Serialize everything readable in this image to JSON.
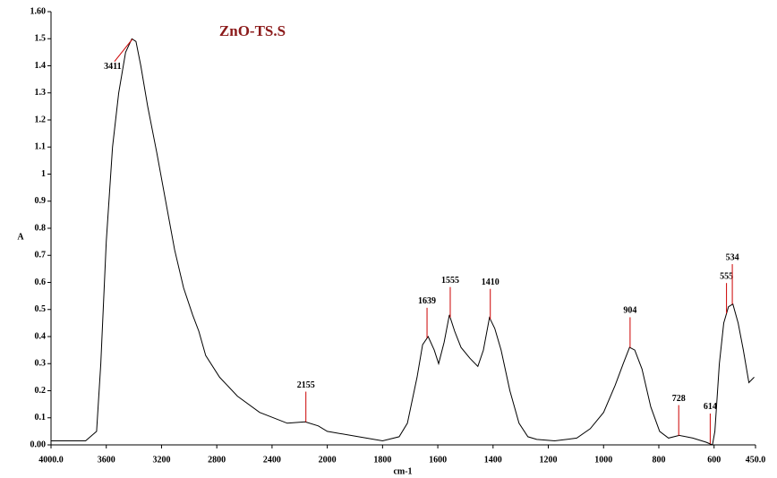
{
  "chart_data": {
    "type": "line",
    "title": "ZnO-TS.S",
    "x_label": "cm-1",
    "y_label": "A",
    "xlim": [
      4000,
      450
    ],
    "x_scale": {
      "break": 2000,
      "factor": 2
    },
    "ylim": [
      0,
      1.6
    ],
    "xticks": [
      {
        "value": 4000,
        "label": "4000.0"
      },
      3600,
      3200,
      2800,
      2400,
      2000,
      1800,
      1600,
      1400,
      1200,
      1000,
      800,
      600,
      {
        "value": 450,
        "label": "450.0"
      }
    ],
    "yticks": [
      {
        "value": 0,
        "label": "0.00"
      },
      0.1,
      0.2,
      0.3,
      0.4,
      0.5,
      0.6,
      0.7,
      0.8,
      0.9,
      1.0,
      1.1,
      1.2,
      1.3,
      1.4,
      1.5,
      {
        "value": 1.6,
        "label": "1.60"
      }
    ],
    "color": "#000000",
    "peak_color": "#cc0000",
    "x": [
      4000,
      3750,
      3670,
      3640,
      3600,
      3555,
      3510,
      3460,
      3415,
      3385,
      3350,
      3300,
      3235,
      3170,
      3105,
      3040,
      2975,
      2930,
      2880,
      2780,
      2650,
      2490,
      2290,
      2160,
      2065,
      2000,
      1887,
      1800,
      1740,
      1710,
      1675,
      1655,
      1635,
      1613,
      1597,
      1577,
      1558,
      1539,
      1516,
      1484,
      1455,
      1435,
      1413,
      1394,
      1371,
      1339,
      1306,
      1274,
      1242,
      1177,
      1097,
      1048,
      1000,
      958,
      929,
      906,
      887,
      861,
      829,
      797,
      765,
      726,
      677,
      629,
      606,
      597,
      581,
      565,
      548,
      532,
      513,
      494,
      474,
      455
    ],
    "values": [
      0.015,
      0.015,
      0.05,
      0.3,
      0.75,
      1.1,
      1.3,
      1.45,
      1.5,
      1.49,
      1.4,
      1.25,
      1.08,
      0.9,
      0.72,
      0.58,
      0.48,
      0.42,
      0.33,
      0.25,
      0.18,
      0.12,
      0.08,
      0.085,
      0.07,
      0.05,
      0.03,
      0.015,
      0.03,
      0.08,
      0.25,
      0.37,
      0.4,
      0.35,
      0.3,
      0.38,
      0.48,
      0.42,
      0.36,
      0.32,
      0.29,
      0.35,
      0.47,
      0.43,
      0.35,
      0.2,
      0.08,
      0.03,
      0.02,
      0.015,
      0.025,
      0.06,
      0.12,
      0.22,
      0.3,
      0.36,
      0.35,
      0.28,
      0.14,
      0.05,
      0.025,
      0.035,
      0.025,
      0.01,
      0.0,
      0.05,
      0.3,
      0.45,
      0.51,
      0.52,
      0.45,
      0.35,
      0.23,
      0.25
    ],
    "peaks": [
      3411,
      2155,
      1639,
      1555,
      1410,
      904,
      728,
      614,
      555,
      534
    ]
  }
}
